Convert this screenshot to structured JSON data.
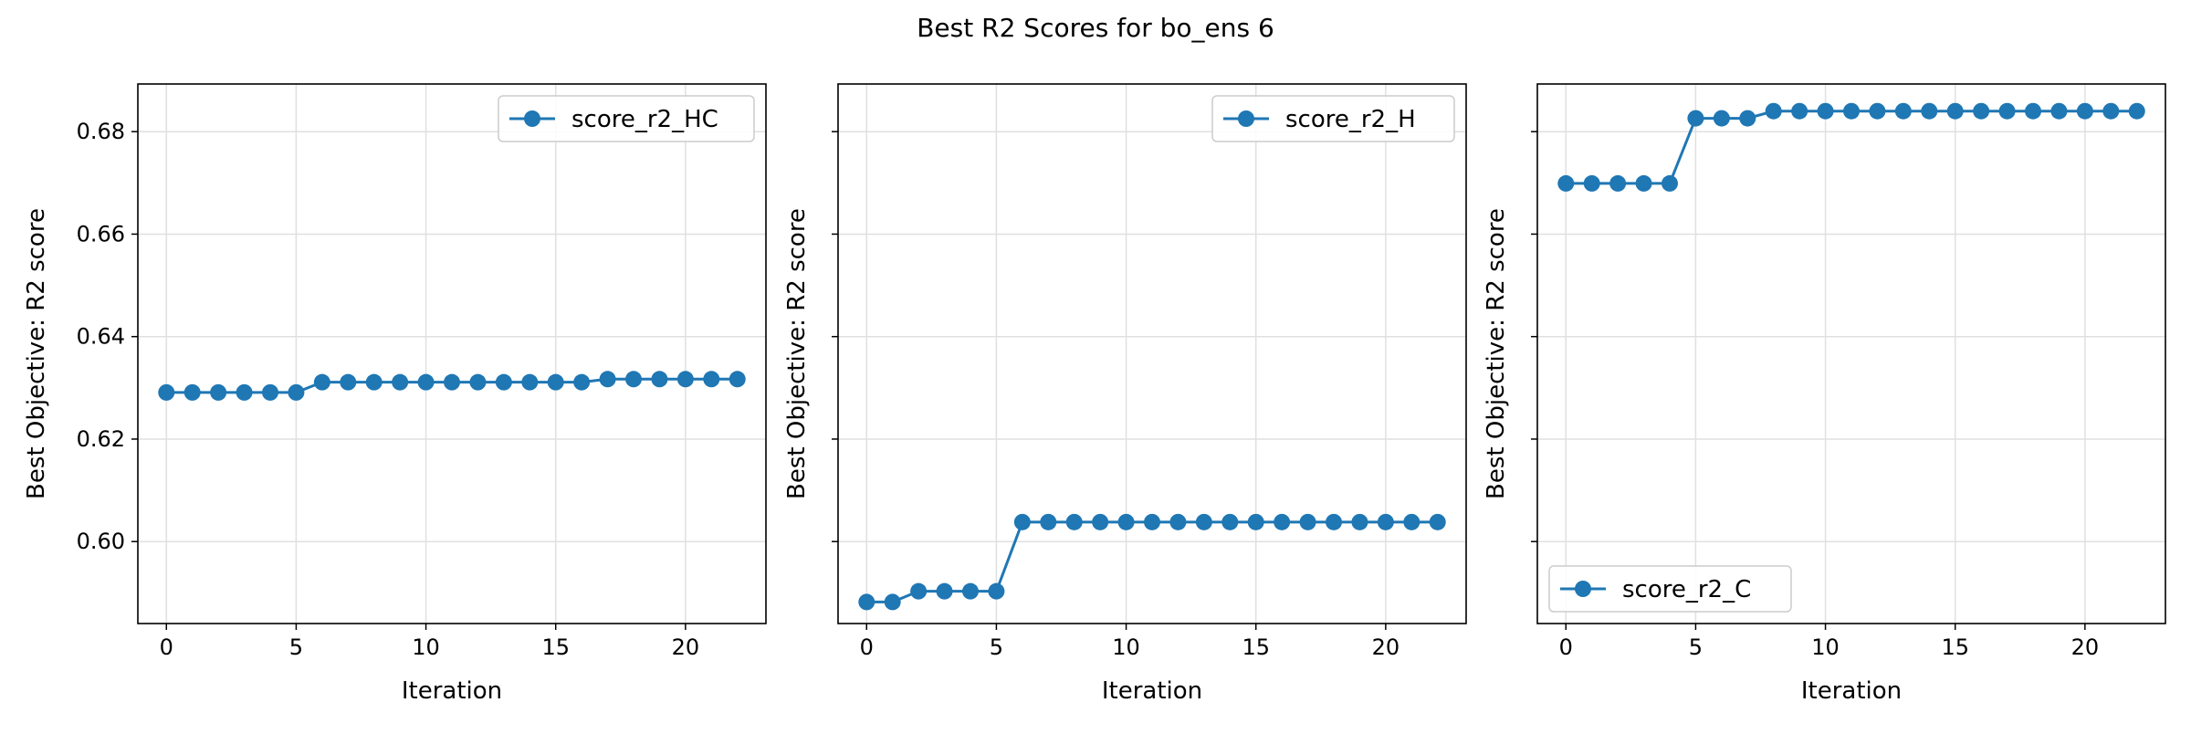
{
  "figure": {
    "title": "Best R2 Scores for bo_ens 6"
  },
  "chart_data": [
    {
      "type": "line",
      "xlabel": "Iteration",
      "ylabel": "Best Objective: R2 score",
      "xlim": [
        -1.1,
        23.1
      ],
      "ylim": [
        0.584,
        0.6893
      ],
      "xticks": [
        0,
        5,
        10,
        15,
        20
      ],
      "yticks": [
        0.6,
        0.62,
        0.64,
        0.66,
        0.68
      ],
      "ytick_labels": [
        "0.60",
        "0.62",
        "0.64",
        "0.66",
        "0.68"
      ],
      "show_ytick_labels": true,
      "grid": true,
      "legend_position": "top-right",
      "series": [
        {
          "name": "score_r2_HC",
          "color": "#1f77b4",
          "marker": "circle",
          "x": [
            0,
            1,
            2,
            3,
            4,
            5,
            6,
            7,
            8,
            9,
            10,
            11,
            12,
            13,
            14,
            15,
            16,
            17,
            18,
            19,
            20,
            21,
            22
          ],
          "values": [
            0.6291,
            0.6291,
            0.6291,
            0.6291,
            0.6291,
            0.6291,
            0.6311,
            0.6311,
            0.6311,
            0.6311,
            0.6311,
            0.6311,
            0.6311,
            0.6311,
            0.6311,
            0.6311,
            0.6311,
            0.6317,
            0.6317,
            0.6317,
            0.6317,
            0.6317,
            0.6317
          ]
        }
      ]
    },
    {
      "type": "line",
      "xlabel": "Iteration",
      "ylabel": "Best Objective: R2 score",
      "xlim": [
        -1.1,
        23.1
      ],
      "ylim": [
        0.584,
        0.6893
      ],
      "xticks": [
        0,
        5,
        10,
        15,
        20
      ],
      "yticks": [
        0.6,
        0.62,
        0.64,
        0.66,
        0.68
      ],
      "ytick_labels": [
        "0.60",
        "0.62",
        "0.64",
        "0.66",
        "0.68"
      ],
      "show_ytick_labels": false,
      "grid": true,
      "legend_position": "top-right",
      "series": [
        {
          "name": "score_r2_H",
          "color": "#1f77b4",
          "marker": "circle",
          "x": [
            0,
            1,
            2,
            3,
            4,
            5,
            6,
            7,
            8,
            9,
            10,
            11,
            12,
            13,
            14,
            15,
            16,
            17,
            18,
            19,
            20,
            21,
            22
          ],
          "values": [
            0.5882,
            0.5882,
            0.5903,
            0.5903,
            0.5903,
            0.5903,
            0.6038,
            0.6038,
            0.6038,
            0.6038,
            0.6038,
            0.6038,
            0.6038,
            0.6038,
            0.6038,
            0.6038,
            0.6038,
            0.6038,
            0.6038,
            0.6038,
            0.6038,
            0.6038,
            0.6038
          ]
        }
      ]
    },
    {
      "type": "line",
      "xlabel": "Iteration",
      "ylabel": "Best Objective: R2 score",
      "xlim": [
        -1.1,
        23.1
      ],
      "ylim": [
        0.584,
        0.6893
      ],
      "xticks": [
        0,
        5,
        10,
        15,
        20
      ],
      "yticks": [
        0.6,
        0.62,
        0.64,
        0.66,
        0.68
      ],
      "ytick_labels": [
        "0.60",
        "0.62",
        "0.64",
        "0.66",
        "0.68"
      ],
      "show_ytick_labels": false,
      "grid": true,
      "legend_position": "bottom-left",
      "series": [
        {
          "name": "score_r2_C",
          "color": "#1f77b4",
          "marker": "circle",
          "x": [
            0,
            1,
            2,
            3,
            4,
            5,
            6,
            7,
            8,
            9,
            10,
            11,
            12,
            13,
            14,
            15,
            16,
            17,
            18,
            19,
            20,
            21,
            22
          ],
          "values": [
            0.6699,
            0.6699,
            0.6699,
            0.6699,
            0.6699,
            0.6826,
            0.6826,
            0.6826,
            0.684,
            0.684,
            0.684,
            0.684,
            0.684,
            0.684,
            0.684,
            0.684,
            0.684,
            0.684,
            0.684,
            0.684,
            0.684,
            0.684,
            0.684
          ]
        }
      ]
    }
  ]
}
